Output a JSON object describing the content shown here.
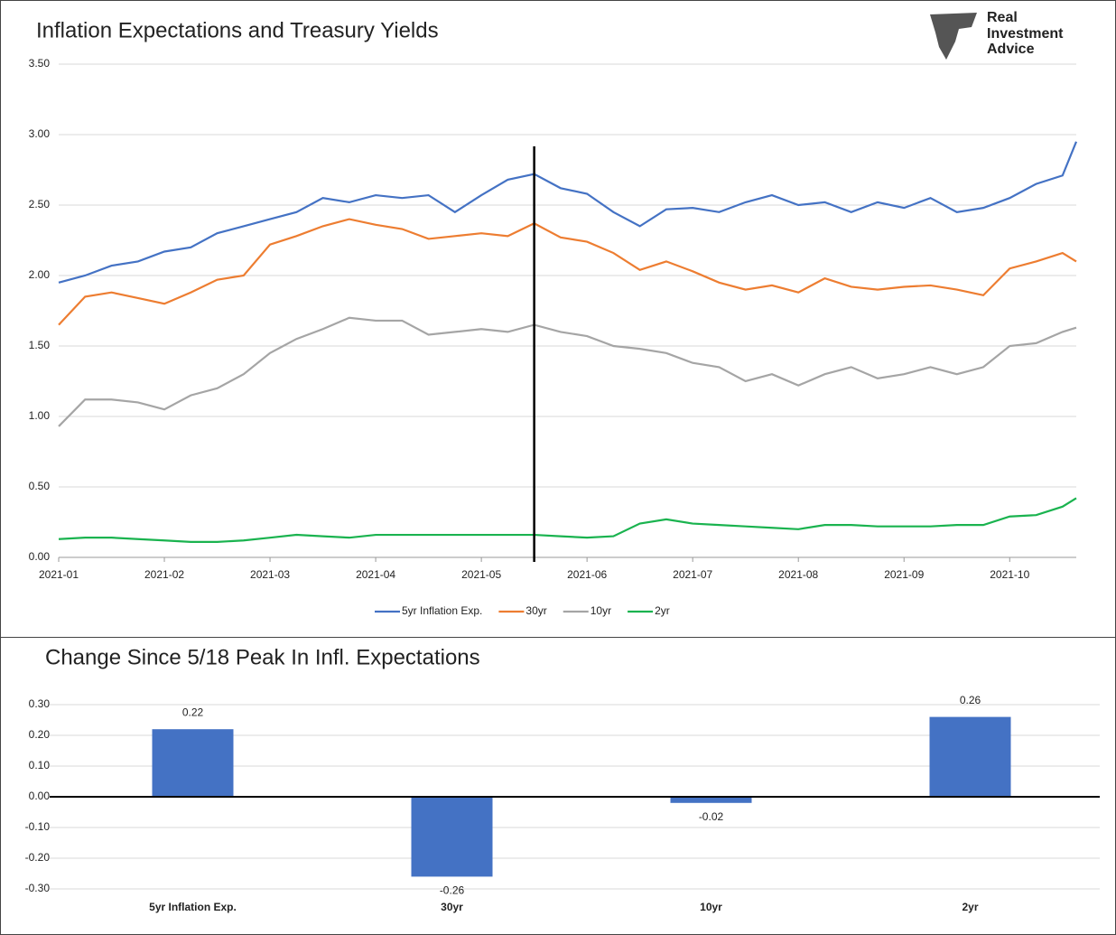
{
  "logo": [
    "Real",
    "Investment",
    "Advice"
  ],
  "chart_data": [
    {
      "type": "line",
      "title": "Inflation Expectations and Treasury Yields",
      "x": [
        0,
        0.25,
        0.5,
        0.75,
        1,
        1.25,
        1.5,
        1.75,
        2,
        2.25,
        2.5,
        2.75,
        3,
        3.25,
        3.5,
        3.75,
        4,
        4.25,
        4.5,
        4.75,
        5,
        5.25,
        5.5,
        5.75,
        6,
        6.25,
        6.5,
        6.75,
        7,
        7.25,
        7.5,
        7.75,
        8,
        8.25,
        8.5,
        8.75,
        9,
        9.25,
        9.5,
        9.63
      ],
      "xlim": [
        0,
        9.63
      ],
      "xticks": [
        {
          "value": 0,
          "label": "2021-01"
        },
        {
          "value": 1,
          "label": "2021-02"
        },
        {
          "value": 2,
          "label": "2021-03"
        },
        {
          "value": 3,
          "label": "2021-04"
        },
        {
          "value": 4,
          "label": "2021-05"
        },
        {
          "value": 5,
          "label": "2021-06"
        },
        {
          "value": 6,
          "label": "2021-07"
        },
        {
          "value": 7,
          "label": "2021-08"
        },
        {
          "value": 8,
          "label": "2021-09"
        },
        {
          "value": 9,
          "label": "2021-10"
        }
      ],
      "ylim": [
        0,
        3.5
      ],
      "yticks": [
        {
          "value": 0,
          "label": "0.00"
        },
        {
          "value": 0.5,
          "label": "0.50"
        },
        {
          "value": 1,
          "label": "1.00"
        },
        {
          "value": 1.5,
          "label": "1.50"
        },
        {
          "value": 2,
          "label": "2.00"
        },
        {
          "value": 2.5,
          "label": "2.50"
        },
        {
          "value": 3,
          "label": "3.00"
        },
        {
          "value": 3.5,
          "label": "3.50"
        }
      ],
      "grid": true,
      "annotation_x": 4.5,
      "series": [
        {
          "name": "5yr Inflation Exp.",
          "color": "#4472c4",
          "values": [
            1.95,
            2.0,
            2.07,
            2.1,
            2.17,
            2.2,
            2.3,
            2.35,
            2.4,
            2.45,
            2.55,
            2.52,
            2.57,
            2.55,
            2.57,
            2.45,
            2.57,
            2.68,
            2.72,
            2.62,
            2.58,
            2.45,
            2.35,
            2.47,
            2.48,
            2.45,
            2.52,
            2.57,
            2.5,
            2.52,
            2.45,
            2.52,
            2.48,
            2.55,
            2.45,
            2.48,
            2.55,
            2.65,
            2.71,
            2.95
          ]
        },
        {
          "name": "30yr",
          "color": "#ed7d31",
          "values": [
            1.65,
            1.85,
            1.88,
            1.84,
            1.8,
            1.88,
            1.97,
            2.0,
            2.22,
            2.28,
            2.35,
            2.4,
            2.36,
            2.33,
            2.26,
            2.28,
            2.3,
            2.28,
            2.37,
            2.27,
            2.24,
            2.16,
            2.04,
            2.1,
            2.03,
            1.95,
            1.9,
            1.93,
            1.88,
            1.98,
            1.92,
            1.9,
            1.92,
            1.93,
            1.9,
            1.86,
            2.05,
            2.1,
            2.16,
            2.1
          ]
        },
        {
          "name": "10yr",
          "color": "#a5a5a5",
          "values": [
            0.93,
            1.12,
            1.12,
            1.1,
            1.05,
            1.15,
            1.2,
            1.3,
            1.45,
            1.55,
            1.62,
            1.7,
            1.68,
            1.68,
            1.58,
            1.6,
            1.62,
            1.6,
            1.65,
            1.6,
            1.57,
            1.5,
            1.48,
            1.45,
            1.38,
            1.35,
            1.25,
            1.3,
            1.22,
            1.3,
            1.35,
            1.27,
            1.3,
            1.35,
            1.3,
            1.35,
            1.5,
            1.52,
            1.6,
            1.63
          ]
        },
        {
          "name": "2yr",
          "color": "#1ab34f",
          "values": [
            0.13,
            0.14,
            0.14,
            0.13,
            0.12,
            0.11,
            0.11,
            0.12,
            0.14,
            0.16,
            0.15,
            0.14,
            0.16,
            0.16,
            0.16,
            0.16,
            0.16,
            0.16,
            0.16,
            0.15,
            0.14,
            0.15,
            0.24,
            0.27,
            0.24,
            0.23,
            0.22,
            0.21,
            0.2,
            0.23,
            0.23,
            0.22,
            0.22,
            0.22,
            0.23,
            0.23,
            0.29,
            0.3,
            0.36,
            0.42
          ]
        }
      ]
    },
    {
      "type": "bar",
      "title": "Change Since 5/18 Peak In Infl. Expectations",
      "categories": [
        "5yr Inflation Exp.",
        "30yr",
        "10yr",
        "2yr"
      ],
      "values": [
        0.22,
        -0.26,
        -0.02,
        0.26
      ],
      "color": "#4472c4",
      "ylim": [
        -0.3,
        0.3
      ],
      "yticks": [
        {
          "value": -0.3,
          "label": "-0.30"
        },
        {
          "value": -0.2,
          "label": "-0.20"
        },
        {
          "value": -0.1,
          "label": "-0.10"
        },
        {
          "value": 0,
          "label": "0.00"
        },
        {
          "value": 0.1,
          "label": "0.10"
        },
        {
          "value": 0.2,
          "label": "0.20"
        },
        {
          "value": 0.3,
          "label": "0.30"
        }
      ],
      "grid": true
    }
  ]
}
